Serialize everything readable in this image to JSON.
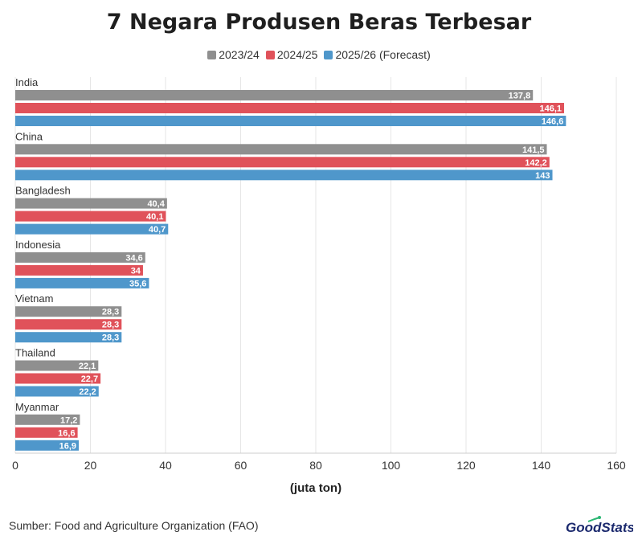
{
  "chart_data": {
    "type": "bar",
    "orientation": "horizontal",
    "title": "7 Negara Produsen Beras Terbesar",
    "xlabel": "(juta ton)",
    "xlim": [
      0,
      160
    ],
    "xticks": [
      0,
      20,
      40,
      60,
      80,
      100,
      120,
      140,
      160
    ],
    "grid": true,
    "legend_position": "top-center",
    "categories": [
      "India",
      "China",
      "Bangladesh",
      "Indonesia",
      "Vietnam",
      "Thailand",
      "Myanmar"
    ],
    "series": [
      {
        "name": "2023/24",
        "color": "#8f8f8f",
        "values": [
          137.8,
          141.5,
          40.4,
          34.6,
          28.3,
          22.1,
          17.2
        ],
        "labels": [
          "137,8",
          "141,5",
          "40,4",
          "34,6",
          "28,3",
          "22,1",
          "17,2"
        ]
      },
      {
        "name": "2024/25",
        "color": "#e0525a",
        "values": [
          146.1,
          142.2,
          40.1,
          34,
          28.3,
          22.7,
          16.6
        ],
        "labels": [
          "146,1",
          "142,2",
          "40,1",
          "34",
          "28,3",
          "22,7",
          "16,6"
        ]
      },
      {
        "name": "2025/26 (Forecast)",
        "color": "#4f97cb",
        "values": [
          146.6,
          143,
          40.7,
          35.6,
          28.3,
          22.2,
          16.9
        ],
        "labels": [
          "146,6",
          "143",
          "40,7",
          "35,6",
          "28,3",
          "22,2",
          "16,9"
        ]
      }
    ]
  },
  "source": "Sumber: Food and Agriculture Organization (FAO)",
  "brand": {
    "text": "GoodStats",
    "color": "#1c2a6e",
    "accent": "#2bb673"
  }
}
